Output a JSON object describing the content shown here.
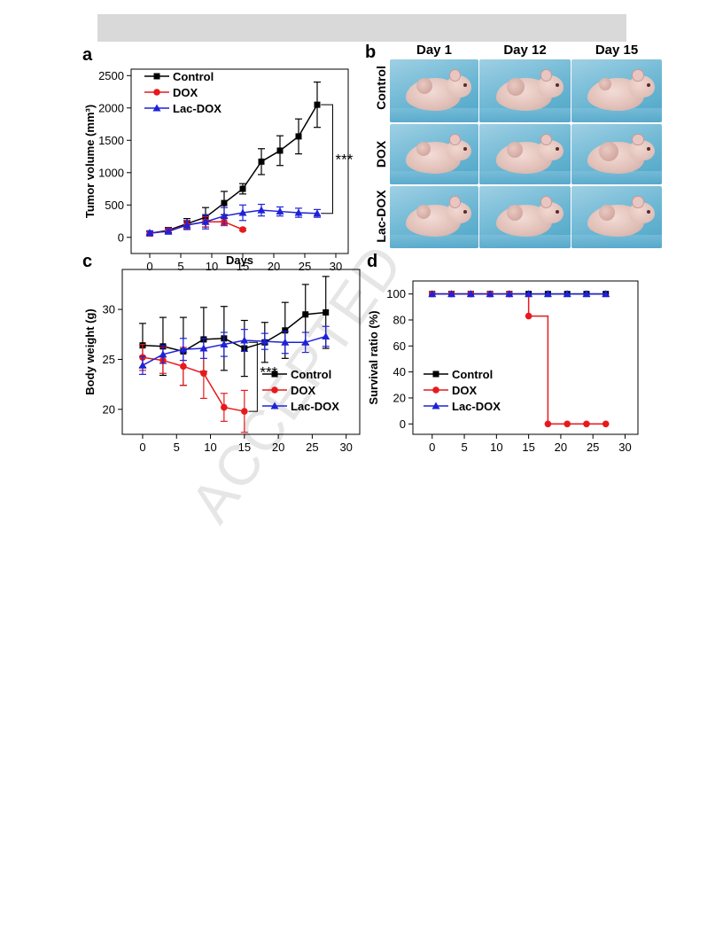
{
  "header_bar": "",
  "watermark": "ACCEPTED",
  "panel_b": {
    "label": "b",
    "columns": [
      "Day 1",
      "Day 12",
      "Day 15"
    ],
    "rows": [
      "Control",
      "DOX",
      "Lac-DOX"
    ]
  },
  "colors": {
    "Control": "#000000",
    "DOX": "#e8191c",
    "Lac-DOX": "#1e22d8"
  },
  "chart_data": [
    {
      "panel": "a",
      "type": "line",
      "xlabel": "Days",
      "ylabel": "Tumor volume (mm³)",
      "xlim": [
        -3,
        32
      ],
      "ylim": [
        -250,
        2600
      ],
      "xticks": [
        0,
        5,
        10,
        15,
        20,
        25,
        30
      ],
      "yticks": [
        0,
        500,
        1000,
        1500,
        2000,
        2500
      ],
      "legend": "top-left",
      "annotation": "***",
      "series": [
        {
          "name": "Control",
          "marker": "square",
          "x": [
            0,
            3,
            6,
            9,
            12,
            15,
            18,
            21,
            24,
            27
          ],
          "y": [
            60,
            110,
            210,
            310,
            530,
            750,
            1170,
            1340,
            1560,
            2050
          ],
          "err": [
            30,
            40,
            80,
            150,
            180,
            80,
            200,
            230,
            270,
            350
          ]
        },
        {
          "name": "DOX",
          "marker": "circle",
          "x": [
            0,
            3,
            6,
            9,
            12,
            15
          ],
          "y": [
            60,
            100,
            190,
            240,
            240,
            120
          ],
          "err": [
            30,
            40,
            60,
            80,
            60,
            20
          ]
        },
        {
          "name": "Lac-DOX",
          "marker": "triangle",
          "x": [
            0,
            3,
            6,
            9,
            12,
            15,
            18,
            21,
            24,
            27
          ],
          "y": [
            70,
            90,
            190,
            240,
            330,
            380,
            420,
            400,
            380,
            370
          ],
          "err": [
            30,
            40,
            70,
            110,
            130,
            120,
            90,
            70,
            70,
            60
          ]
        }
      ]
    },
    {
      "panel": "c",
      "type": "line",
      "xlabel": "",
      "ylabel": "Body weight (g)",
      "xlim": [
        -3,
        32
      ],
      "ylim": [
        17.5,
        34
      ],
      "xticks": [
        0,
        5,
        10,
        15,
        20,
        25,
        30
      ],
      "yticks": [
        20,
        25,
        30
      ],
      "legend": "right",
      "annotation": "***",
      "series": [
        {
          "name": "Control",
          "marker": "square",
          "x": [
            0,
            3,
            6,
            9,
            12,
            15,
            18,
            21,
            24,
            27
          ],
          "y": [
            26.4,
            26.3,
            25.8,
            27.0,
            27.1,
            26.1,
            26.7,
            27.9,
            29.5,
            29.7
          ],
          "err": [
            2.2,
            2.9,
            3.4,
            3.2,
            3.2,
            2.8,
            2.0,
            2.8,
            3.0,
            3.6
          ]
        },
        {
          "name": "DOX",
          "marker": "circle",
          "x": [
            0,
            3,
            6,
            9,
            12,
            15
          ],
          "y": [
            25.2,
            24.9,
            24.3,
            23.6,
            20.2,
            19.8
          ],
          "err": [
            1.3,
            1.3,
            1.9,
            2.5,
            1.4,
            2.1
          ]
        },
        {
          "name": "Lac-DOX",
          "marker": "triangle",
          "x": [
            0,
            3,
            6,
            9,
            12,
            15,
            18,
            21,
            24,
            27
          ],
          "y": [
            24.4,
            25.5,
            26.0,
            26.1,
            26.5,
            26.9,
            26.8,
            26.7,
            26.7,
            27.3
          ],
          "err": [
            0.9,
            0.9,
            1.1,
            1.0,
            1.2,
            1.1,
            0.8,
            1.1,
            1.0,
            1.0
          ]
        }
      ]
    },
    {
      "panel": "d",
      "type": "line",
      "step": true,
      "xlabel": "",
      "ylabel": "Survival ratio (%)",
      "xlim": [
        -3,
        32
      ],
      "ylim": [
        -8,
        110
      ],
      "xticks": [
        0,
        5,
        10,
        15,
        20,
        25,
        30
      ],
      "yticks": [
        0,
        20,
        40,
        60,
        80,
        100
      ],
      "legend": "bottom-left",
      "series": [
        {
          "name": "Control",
          "marker": "square",
          "x": [
            0,
            3,
            6,
            9,
            12,
            15,
            18,
            21,
            24,
            27
          ],
          "y": [
            100,
            100,
            100,
            100,
            100,
            100,
            100,
            100,
            100,
            100
          ]
        },
        {
          "name": "DOX",
          "marker": "circle",
          "x": [
            0,
            3,
            6,
            9,
            12,
            15,
            18,
            21,
            24,
            27
          ],
          "y": [
            100,
            100,
            100,
            100,
            100,
            83,
            0,
            0,
            0,
            0
          ]
        },
        {
          "name": "Lac-DOX",
          "marker": "triangle",
          "x": [
            0,
            3,
            6,
            9,
            12,
            15,
            18,
            21,
            24,
            27
          ],
          "y": [
            100,
            100,
            100,
            100,
            100,
            100,
            100,
            100,
            100,
            100
          ]
        }
      ]
    }
  ]
}
